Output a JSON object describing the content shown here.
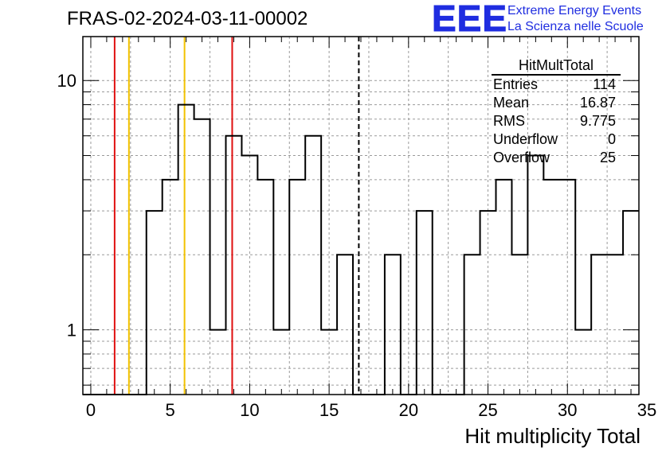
{
  "title": "FRAS-02-2024-03-11-00002",
  "logo": {
    "mark": "EEE",
    "line1": "Extreme Energy Events",
    "line2": "La Scienza nelle Scuole",
    "color": "#1f2de0"
  },
  "stats": {
    "name": "HitMultTotal",
    "rows": [
      {
        "label": "Entries",
        "value": "114"
      },
      {
        "label": "Mean",
        "value": "16.87"
      },
      {
        "label": "RMS",
        "value": "9.775"
      },
      {
        "label": "Underflow",
        "value": "0"
      },
      {
        "label": "Overflow",
        "value": "25"
      }
    ]
  },
  "chart_data": {
    "type": "histogram",
    "title": "FRAS-02-2024-03-11-00002",
    "xlabel": "Hit multiplicity Total",
    "ylabel": "",
    "xlim": [
      -0.5,
      34.5
    ],
    "ylim": [
      0.55,
      15
    ],
    "yscale": "log",
    "grid": true,
    "bin_width": 1,
    "bin_edges_start": -0.5,
    "values": [
      0,
      0,
      0,
      0,
      3,
      4,
      8,
      7,
      1,
      6,
      5,
      4,
      1,
      4,
      6,
      1,
      2,
      0,
      0,
      2,
      0,
      3,
      0,
      0,
      2,
      3,
      4,
      2,
      5,
      4,
      4,
      1,
      2,
      2,
      3
    ],
    "x_ticks": [
      0,
      5,
      10,
      15,
      20,
      25,
      30,
      35
    ],
    "y_ticks": [
      1,
      10
    ],
    "vertical_lines": [
      {
        "x": 1.5,
        "color": "#e01010",
        "style": "solid"
      },
      {
        "x": 2.4,
        "color": "#f2c200",
        "style": "solid"
      },
      {
        "x": 5.9,
        "color": "#f2c200",
        "style": "solid"
      },
      {
        "x": 8.9,
        "color": "#e01010",
        "style": "solid"
      },
      {
        "x": 16.87,
        "color": "#000000",
        "style": "dashed"
      }
    ]
  }
}
